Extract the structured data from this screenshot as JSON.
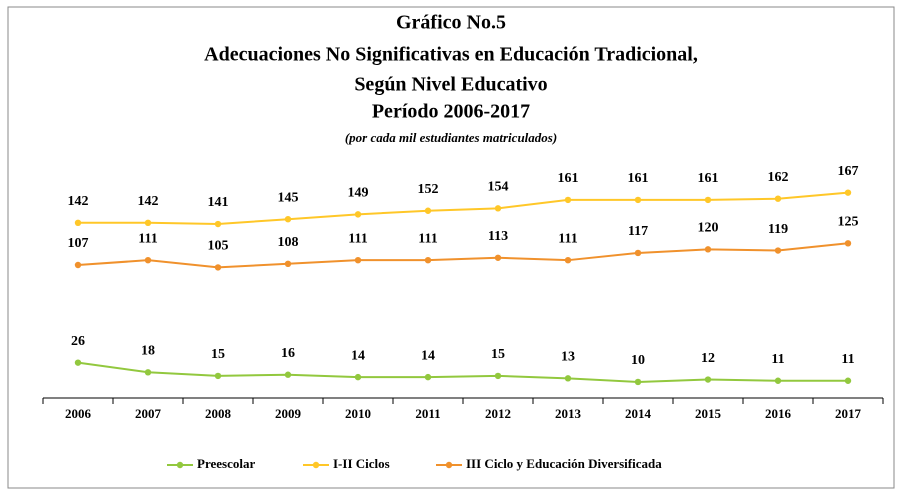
{
  "chart_data": {
    "type": "line",
    "title": [
      "Gráfico No.5",
      "Adecuaciones No Significativas  en Educación Tradicional,",
      "Según Nivel Educativo",
      "Período 2006-2017"
    ],
    "subtitle": "(por cada mil estudiantes matriculados)",
    "categories": [
      "2006",
      "2007",
      "2008",
      "2009",
      "2010",
      "2011",
      "2012",
      "2013",
      "2014",
      "2015",
      "2016",
      "2017"
    ],
    "series": [
      {
        "name": "Preescolar",
        "color": "#92c83e",
        "values": [
          26,
          18,
          15,
          16,
          14,
          14,
          15,
          13,
          10,
          12,
          11,
          11
        ]
      },
      {
        "name": "I-II Ciclos",
        "color": "#ffc728",
        "values": [
          142,
          142,
          141,
          145,
          149,
          152,
          154,
          161,
          161,
          161,
          162,
          167
        ]
      },
      {
        "name": "III Ciclo y Educación Diversificada",
        "color": "#f0912c",
        "values": [
          107,
          111,
          105,
          108,
          111,
          111,
          113,
          111,
          117,
          120,
          119,
          125
        ]
      }
    ],
    "ylim": [
      0,
      180
    ],
    "legend": "bottom"
  }
}
